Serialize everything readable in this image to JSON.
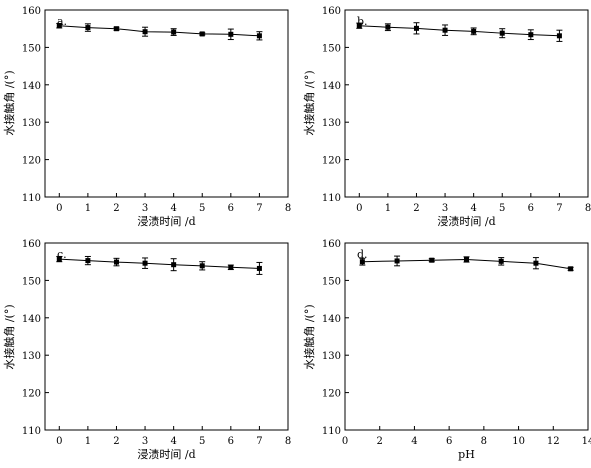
{
  "chart_data": [
    {
      "type": "line",
      "panel_label": "a.",
      "xlabel": "浸渍时间 /d",
      "ylabel": "水接触角 /(°)",
      "xlim": [
        -0.5,
        8
      ],
      "ylim": [
        110,
        160
      ],
      "xticks": [
        0,
        1,
        2,
        3,
        4,
        5,
        6,
        7,
        8
      ],
      "yticks": [
        110,
        120,
        130,
        140,
        150,
        160
      ],
      "x": [
        0,
        1,
        2,
        3,
        4,
        5,
        6,
        7
      ],
      "y": [
        155.8,
        155.3,
        155.0,
        154.2,
        154.1,
        153.6,
        153.5,
        153.1
      ],
      "err": [
        0.6,
        1.0,
        0.4,
        1.2,
        0.9,
        0.3,
        1.4,
        1.1
      ],
      "grid": false
    },
    {
      "type": "line",
      "panel_label": "b.",
      "xlabel": "浸渍时间 /d",
      "ylabel": "水接触角 /(°)",
      "xlim": [
        -0.5,
        8
      ],
      "ylim": [
        110,
        160
      ],
      "xticks": [
        0,
        1,
        2,
        3,
        4,
        5,
        6,
        7,
        8
      ],
      "yticks": [
        110,
        120,
        130,
        140,
        150,
        160
      ],
      "x": [
        0,
        1,
        2,
        3,
        4,
        5,
        6,
        7
      ],
      "y": [
        155.8,
        155.4,
        155.1,
        154.6,
        154.3,
        153.8,
        153.4,
        153.1
      ],
      "err": [
        0.7,
        0.9,
        1.5,
        1.4,
        0.9,
        1.2,
        1.3,
        1.5
      ],
      "grid": false
    },
    {
      "type": "line",
      "panel_label": "c.",
      "xlabel": "浸渍时间 /d",
      "ylabel": "水接触角 /(°)",
      "xlim": [
        -0.5,
        8
      ],
      "ylim": [
        110,
        160
      ],
      "xticks": [
        0,
        1,
        2,
        3,
        4,
        5,
        6,
        7,
        8
      ],
      "yticks": [
        110,
        120,
        130,
        140,
        150,
        160
      ],
      "x": [
        0,
        1,
        2,
        3,
        4,
        5,
        6,
        7
      ],
      "y": [
        155.7,
        155.3,
        154.9,
        154.6,
        154.2,
        153.9,
        153.5,
        153.2
      ],
      "err": [
        0.7,
        1.1,
        1.0,
        1.4,
        1.6,
        1.1,
        0.6,
        1.6
      ],
      "grid": false
    },
    {
      "type": "line",
      "panel_label": "d.",
      "xlabel": "pH",
      "ylabel": "水接触角 /(°)",
      "xlim": [
        0,
        14
      ],
      "ylim": [
        110,
        160
      ],
      "xticks": [
        0,
        2,
        4,
        6,
        8,
        10,
        12,
        14
      ],
      "yticks": [
        110,
        120,
        130,
        140,
        150,
        160
      ],
      "x": [
        1,
        3,
        5,
        7,
        9,
        11,
        13
      ],
      "y": [
        155.0,
        155.2,
        155.4,
        155.6,
        155.1,
        154.6,
        153.1
      ],
      "err": [
        0.9,
        1.3,
        0.4,
        0.7,
        1.0,
        1.5,
        0.4
      ],
      "grid": false
    }
  ]
}
